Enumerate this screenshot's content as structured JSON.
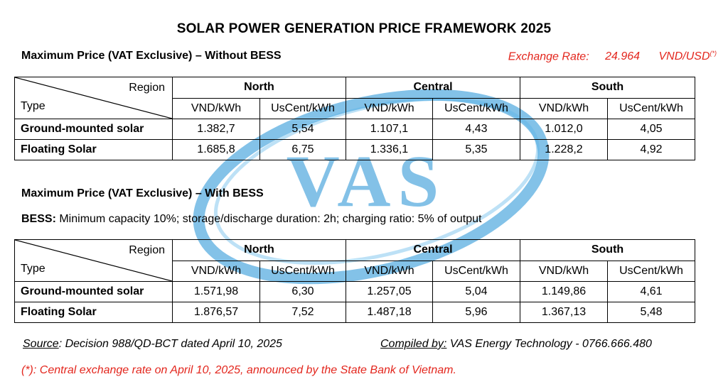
{
  "title": "SOLAR POWER GENERATION PRICE FRAMEWORK 2025",
  "watermark": {
    "text": "VAS",
    "color": "#1e8fd5"
  },
  "exchange": {
    "label": "Exchange Rate:",
    "value": "24.964",
    "unit": "VND/USD",
    "mark": "(*)"
  },
  "table_header": {
    "region": "Region",
    "type": "Type",
    "regions": [
      "North",
      "Central",
      "South"
    ],
    "units": [
      "VND/kWh",
      "UsCent/kWh"
    ]
  },
  "without_bess": {
    "heading": "Maximum Price (VAT Exclusive) – Without BESS",
    "rows": [
      {
        "type": "Ground-mounted solar",
        "values": [
          "1.382,7",
          "5,54",
          "1.107,1",
          "4,43",
          "1.012,0",
          "4,05"
        ]
      },
      {
        "type": "Floating Solar",
        "values": [
          "1.685,8",
          "6,75",
          "1.336,1",
          "5,35",
          "1.228,2",
          "4,92"
        ]
      }
    ]
  },
  "with_bess": {
    "heading": "Maximum Price (VAT Exclusive) – With BESS",
    "note_label": "BESS:",
    "note_text": " Minimum capacity 10%; storage/discharge duration: 2h; charging ratio: 5% of output",
    "rows": [
      {
        "type": "Ground-mounted solar",
        "values": [
          "1.571,98",
          "6,30",
          "1.257,05",
          "5,04",
          "1.149,86",
          "4,61"
        ]
      },
      {
        "type": "Floating Solar",
        "values": [
          "1.876,57",
          "7,52",
          "1.487,18",
          "5,96",
          "1.367,13",
          "5,48"
        ]
      }
    ]
  },
  "footer": {
    "source_label": "Source",
    "source_text": ": Decision 988/QD-BCT dated April 10, 2025",
    "compiled_label": "Compiled by:",
    "compiled_text": " VAS Energy Technology - 0766.666.480"
  },
  "note": "(*): Central exchange rate on April 10, 2025, announced by the State Bank of Vietnam."
}
